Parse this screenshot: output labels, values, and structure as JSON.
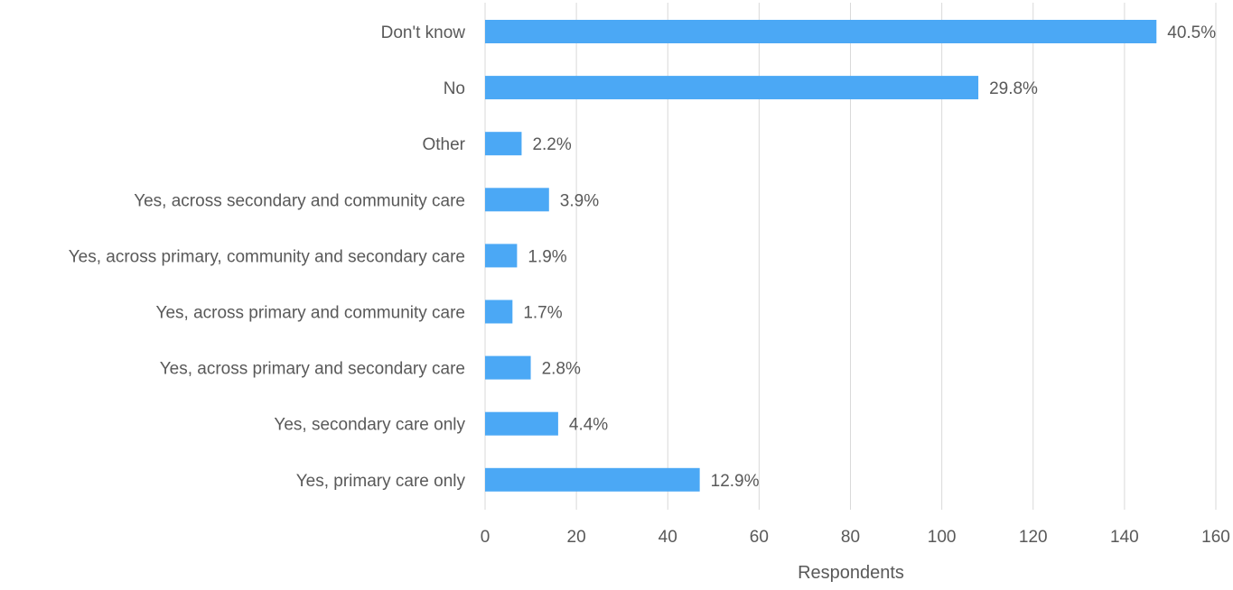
{
  "chart_data": {
    "type": "bar",
    "orientation": "horizontal",
    "title": "",
    "xlabel": "Respondents",
    "ylabel": "",
    "xlim": [
      0,
      160
    ],
    "x_ticks": [
      0,
      20,
      40,
      60,
      80,
      100,
      120,
      140,
      160
    ],
    "grid": "vertical major gridlines",
    "legend": "none",
    "bar_color": "#4BA8F5",
    "gridline_color": "#D9D9D9",
    "text_color": "#595959",
    "categories": [
      "Don't know",
      "No",
      "Other",
      "Yes, across secondary and community care",
      "Yes, across primary, community and secondary care",
      "Yes, across primary and community care",
      "Yes, across primary and secondary care",
      "Yes, secondary care only",
      "Yes, primary care only"
    ],
    "values": [
      147,
      108,
      8,
      14,
      7,
      6,
      10,
      16,
      47
    ],
    "data_labels": [
      "40.5%",
      "29.8%",
      "2.2%",
      "3.9%",
      "1.9%",
      "1.7%",
      "2.8%",
      "4.4%",
      "12.9%"
    ]
  }
}
